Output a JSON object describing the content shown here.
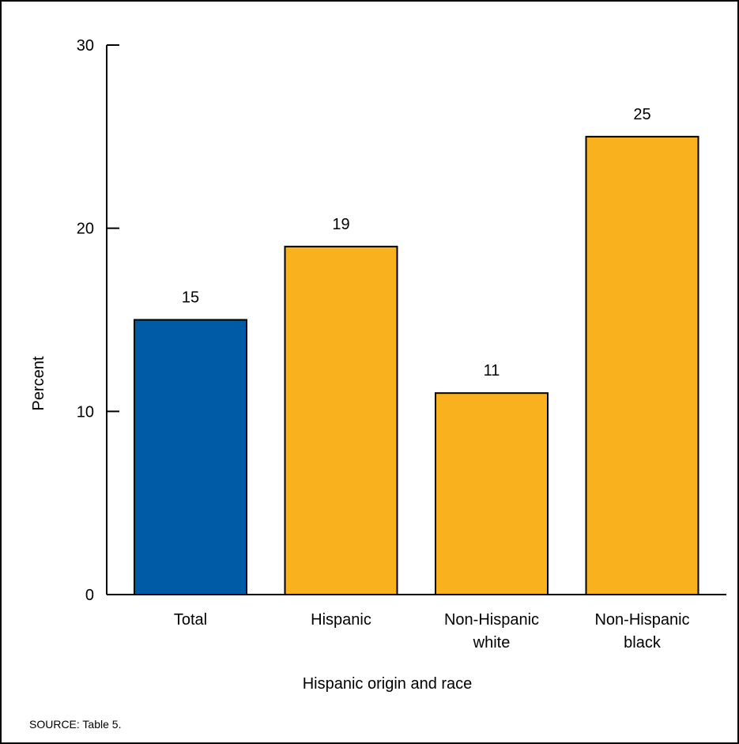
{
  "chart_data": {
    "type": "bar",
    "categories": [
      [
        "Total"
      ],
      [
        "Hispanic"
      ],
      [
        "Non-Hispanic",
        "white"
      ],
      [
        "Non-Hispanic",
        "black"
      ]
    ],
    "values": [
      15,
      19,
      11,
      25
    ],
    "value_labels": [
      "15",
      "19",
      "11",
      "25"
    ],
    "bar_colors": [
      "#005ba6",
      "#f9b21d",
      "#f9b21d",
      "#f9b21d"
    ],
    "xlabel": "Hispanic origin and race",
    "ylabel": "Percent",
    "ylim": [
      0,
      30
    ],
    "yticks": [
      0,
      10,
      20,
      30
    ],
    "ytick_labels": [
      "0",
      "10",
      "20",
      "30"
    ],
    "grid": false,
    "legend": "none"
  },
  "source_note": "SOURCE: Table 5."
}
